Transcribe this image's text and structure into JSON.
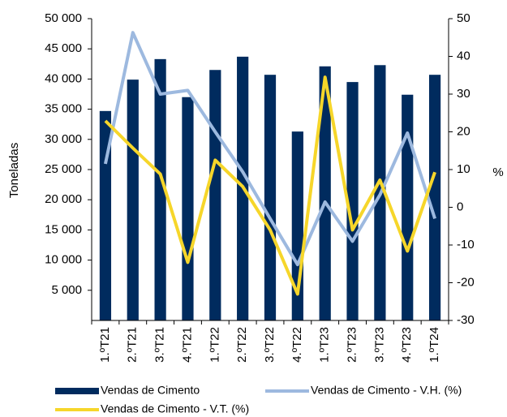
{
  "chart_data": {
    "type": "bar",
    "categories": [
      "1.ºT21",
      "2.ºT21",
      "3.ºT21",
      "4.ºT21",
      "1.ºT22",
      "2.ºT22",
      "3.ºT22",
      "4.ºT22",
      "1.ºT23",
      "2.ºT23",
      "3.ºT23",
      "4.ºT23",
      "1.ºT24"
    ],
    "series": [
      {
        "name": "Vendas de Cimento",
        "type": "bar",
        "color": "#002b5e",
        "values": [
          34700,
          39900,
          43300,
          37000,
          41500,
          43700,
          40700,
          31300,
          42100,
          39500,
          42300,
          37400,
          40700
        ]
      },
      {
        "name": "Vendas de Cimento - V.H. (%)",
        "type": "line",
        "axis": "y2",
        "color": "#9db9df",
        "values": [
          11.5,
          46.3,
          30,
          31,
          20,
          9.4,
          -3,
          -15.2,
          1.4,
          -9,
          3.3,
          19.7,
          -3
        ]
      },
      {
        "name": "Vendas de Cimento - V.T. (%)",
        "type": "line",
        "axis": "y2",
        "color": "#f6d62a",
        "values": [
          22.9,
          15.7,
          8.8,
          -14.6,
          12.5,
          5.5,
          -6,
          -23,
          34.5,
          -6,
          7.2,
          -11.6,
          9.3
        ]
      }
    ],
    "ylabel": "Toneladas",
    "y2label": "%",
    "ylim": [
      0,
      50000
    ],
    "yticks": [
      {
        "value": 5000,
        "label": "5 000"
      },
      {
        "value": 10000,
        "label": "10 000"
      },
      {
        "value": 15000,
        "label": "15 000"
      },
      {
        "value": 20000,
        "label": "20 000"
      },
      {
        "value": 25000,
        "label": "25 000"
      },
      {
        "value": 30000,
        "label": "30 000"
      },
      {
        "value": 35000,
        "label": "35 000"
      },
      {
        "value": 40000,
        "label": "40 000"
      },
      {
        "value": 45000,
        "label": "45 000"
      },
      {
        "value": 50000,
        "label": "50 000"
      }
    ],
    "y2lim": [
      -30,
      50
    ],
    "y2ticks": [
      -30,
      -20,
      -10,
      0,
      10,
      20,
      30,
      40,
      50
    ],
    "legend": "bottom"
  }
}
